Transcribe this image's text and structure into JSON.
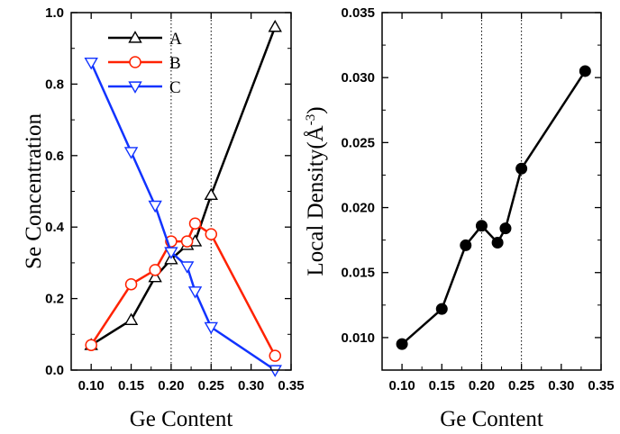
{
  "chart_data": [
    {
      "type": "line",
      "xlabel": "Ge Content",
      "ylabel": "Se Concentration",
      "xlim": [
        0.075,
        0.35
      ],
      "ylim": [
        0.0,
        1.0
      ],
      "xticks": [
        "0.10",
        "0.15",
        "0.20",
        "0.25",
        "0.30",
        "0.35"
      ],
      "yticks": [
        "0.0",
        "0.2",
        "0.4",
        "0.6",
        "0.8",
        "1.0"
      ],
      "vlines": [
        0.2,
        0.25
      ],
      "legend_position": "top-left",
      "series": [
        {
          "name": "A",
          "color": "#000000",
          "marker": "triangle-up",
          "x": [
            0.1,
            0.15,
            0.18,
            0.2,
            0.22,
            0.23,
            0.25,
            0.33
          ],
          "y": [
            0.07,
            0.14,
            0.26,
            0.31,
            0.35,
            0.36,
            0.49,
            0.96
          ]
        },
        {
          "name": "B",
          "color": "#ff2200",
          "marker": "circle",
          "x": [
            0.1,
            0.15,
            0.18,
            0.2,
            0.22,
            0.23,
            0.25,
            0.33
          ],
          "y": [
            0.07,
            0.24,
            0.28,
            0.36,
            0.36,
            0.41,
            0.38,
            0.04
          ]
        },
        {
          "name": "C",
          "color": "#1133ff",
          "marker": "triangle-down",
          "x": [
            0.1,
            0.15,
            0.18,
            0.2,
            0.22,
            0.23,
            0.25,
            0.33
          ],
          "y": [
            0.86,
            0.61,
            0.46,
            0.33,
            0.29,
            0.22,
            0.12,
            0.0
          ]
        }
      ]
    },
    {
      "type": "line",
      "xlabel": "Ge Content",
      "ylabel": "Local Density",
      "ylabel_unit": "Å",
      "ylabel_unit_exp": "-3",
      "xlim": [
        0.075,
        0.35
      ],
      "ylim": [
        0.0075,
        0.035
      ],
      "xticks": [
        "0.10",
        "0.15",
        "0.20",
        "0.25",
        "0.30",
        "0.35"
      ],
      "yticks": [
        "0.010",
        "0.015",
        "0.020",
        "0.025",
        "0.030",
        "0.035"
      ],
      "vlines": [
        0.2,
        0.25
      ],
      "series": [
        {
          "color": "#000000",
          "marker": "filled-circle",
          "x": [
            0.1,
            0.15,
            0.18,
            0.2,
            0.22,
            0.23,
            0.25,
            0.33
          ],
          "y": [
            0.0095,
            0.0122,
            0.0171,
            0.0186,
            0.0173,
            0.0184,
            0.023,
            0.0305
          ]
        }
      ]
    }
  ]
}
